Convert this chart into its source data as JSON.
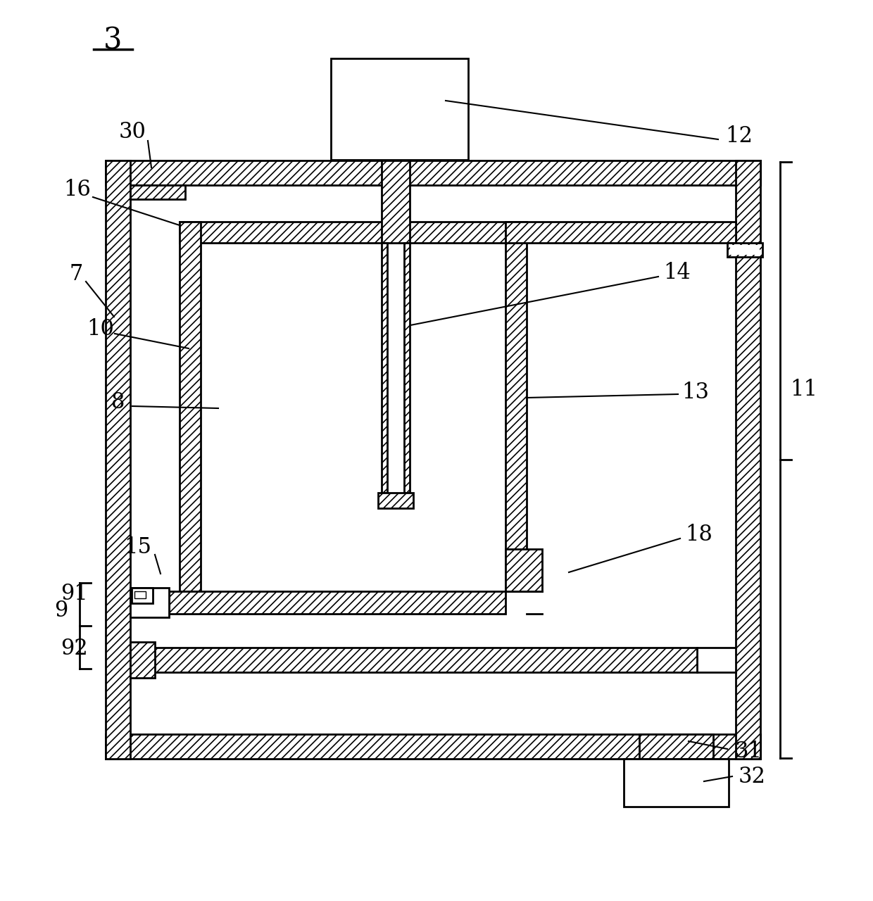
{
  "bg_color": "#ffffff",
  "figsize": [
    12.4,
    12.8
  ],
  "dpi": 100,
  "lw": 2.0
}
